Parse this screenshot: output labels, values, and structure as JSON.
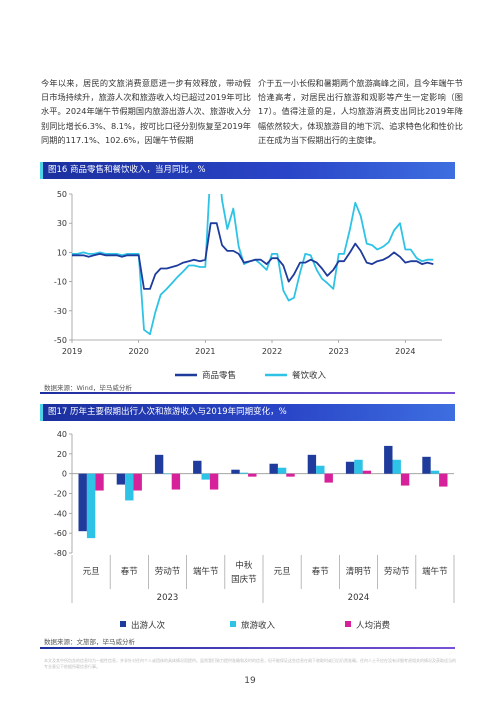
{
  "body_text": {
    "left": "今年以来，居民的文旅消费意愿进一步有效释放，带动假日市场持续升，旅游人次和旅游收入均已超过2019年可比水平。2024年端午节假期国内旅游出游人次、旅游收入分别同比增长6.3%、8.1%，按可比口径分别恢复至2019年同期的117.1%、102.6%，因端午节假期",
    "right": "介于五一小长假和暑期两个旅游高峰之间，且今年端午节恰逢高考，对居民出行旅游和观影等产生一定影响（图17）。值得注意的是，人均旅游消费支出同比2019年降幅依然较大，体现旅游目的地下沉、追求特色化和性价比正在成为当下假期出行的主旋律。"
  },
  "figure16": {
    "title": "图16 商品零售和餐饮收入，当月同比，%",
    "source": "数据来源：Wind，毕马威分析",
    "legend": [
      "商品零售",
      "餐饮收入"
    ]
  },
  "figure17": {
    "title": "图17 历年主要假期出行人次和旅游收入与2019年同期变化，%",
    "source": "数据来源：文旅部，毕马威分析",
    "legend": [
      "出游人次",
      "旅游收入",
      "人均消费"
    ]
  },
  "chart_data": [
    {
      "type": "line",
      "title": "图16 商品零售和餐饮收入，当月同比，%",
      "ylim": [
        -50,
        50
      ],
      "yticks": [
        50,
        30,
        10,
        -10,
        -30,
        -50
      ],
      "xticks": [
        "2019",
        "2020",
        "2021",
        "2022",
        "2023",
        "2024"
      ],
      "xrange": [
        2019.0,
        2024.55
      ],
      "grid": false,
      "legend_position": "bottom",
      "series": [
        {
          "name": "商品零售",
          "color": "#1f3b9c",
          "x": [
            2019.0,
            2019.08,
            2019.17,
            2019.25,
            2019.33,
            2019.42,
            2019.5,
            2019.58,
            2019.67,
            2019.75,
            2019.83,
            2019.92,
            2020.0,
            2020.08,
            2020.17,
            2020.25,
            2020.33,
            2020.42,
            2020.5,
            2020.58,
            2020.67,
            2020.75,
            2020.83,
            2020.92,
            2021.0,
            2021.08,
            2021.17,
            2021.25,
            2021.33,
            2021.42,
            2021.5,
            2021.58,
            2021.67,
            2021.75,
            2021.83,
            2021.92,
            2022.0,
            2022.08,
            2022.17,
            2022.25,
            2022.33,
            2022.42,
            2022.5,
            2022.58,
            2022.67,
            2022.75,
            2022.83,
            2022.92,
            2023.0,
            2023.08,
            2023.17,
            2023.25,
            2023.33,
            2023.42,
            2023.5,
            2023.58,
            2023.67,
            2023.75,
            2023.83,
            2023.92,
            2024.0,
            2024.08,
            2024.17,
            2024.25,
            2024.33,
            2024.42
          ],
          "y": [
            8,
            8,
            8,
            7,
            8,
            9,
            8,
            8,
            8,
            7,
            8,
            8,
            8,
            -15,
            -15,
            -5,
            -1,
            -1,
            0,
            1,
            3,
            4,
            5,
            4,
            5,
            30,
            30,
            15,
            11,
            11,
            9,
            3,
            4,
            5,
            5,
            2,
            6,
            6,
            1,
            -10,
            -5,
            3,
            3,
            5,
            3,
            -1,
            -6,
            -2,
            4,
            4,
            10,
            16,
            11,
            3,
            2,
            4,
            5,
            7,
            10,
            7,
            3,
            4,
            4,
            2,
            3,
            2
          ]
        },
        {
          "name": "餐饮收入",
          "color": "#2ec3e6",
          "x": [
            2019.0,
            2019.08,
            2019.17,
            2019.25,
            2019.33,
            2019.42,
            2019.5,
            2019.58,
            2019.67,
            2019.75,
            2019.83,
            2019.92,
            2020.0,
            2020.08,
            2020.17,
            2020.25,
            2020.33,
            2020.42,
            2020.5,
            2020.58,
            2020.67,
            2020.75,
            2020.83,
            2020.92,
            2021.0,
            2021.08,
            2021.17,
            2021.25,
            2021.33,
            2021.42,
            2021.5,
            2021.58,
            2021.67,
            2021.75,
            2021.83,
            2021.92,
            2022.0,
            2022.08,
            2022.17,
            2022.25,
            2022.33,
            2022.42,
            2022.5,
            2022.58,
            2022.67,
            2022.75,
            2022.83,
            2022.92,
            2023.0,
            2023.08,
            2023.17,
            2023.25,
            2023.33,
            2023.42,
            2023.5,
            2023.58,
            2023.67,
            2023.75,
            2023.83,
            2023.92,
            2024.0,
            2024.08,
            2024.17,
            2024.25,
            2024.33,
            2024.42
          ],
          "y": [
            9,
            9,
            10,
            9,
            9,
            10,
            9,
            9,
            9,
            8,
            9,
            9,
            9,
            -43,
            -46,
            -31,
            -19,
            -15,
            -11,
            -7,
            -3,
            1,
            1,
            0,
            0,
            69,
            91,
            46,
            26,
            40,
            14,
            2,
            4,
            5,
            2,
            -2,
            9,
            9,
            -16,
            -23,
            -21,
            -4,
            9,
            8,
            -2,
            -8,
            -11,
            -15,
            9,
            9,
            26,
            44,
            35,
            16,
            15,
            12,
            14,
            17,
            25,
            30,
            12,
            12,
            6,
            4,
            5,
            5
          ]
        }
      ]
    },
    {
      "type": "bar",
      "title": "图17 历年主要假期出行人次和旅游收入与2019年同期变化，%",
      "ylim": [
        -80,
        40
      ],
      "yticks": [
        40,
        20,
        0,
        -20,
        -40,
        -60,
        -80
      ],
      "grid": false,
      "legend_position": "bottom",
      "categories": [
        "元旦",
        "春节",
        "劳动节",
        "端午节",
        "中秋\n国庆节",
        "元旦",
        "春节",
        "清明节",
        "劳动节",
        "端午节"
      ],
      "groups": [
        {
          "label": "2023",
          "span": [
            0,
            4
          ]
        },
        {
          "label": "2024",
          "span": [
            5,
            9
          ]
        }
      ],
      "series": [
        {
          "name": "出游人次",
          "color": "#1f3b9c",
          "values": [
            -58,
            -11,
            19,
            13,
            4,
            10,
            19,
            12,
            28,
            17
          ]
        },
        {
          "name": "旅游收入",
          "color": "#2ec3e6",
          "values": [
            -65,
            -27,
            0,
            -6,
            1,
            6,
            8,
            14,
            14,
            3
          ]
        },
        {
          "name": "人均消费",
          "color": "#d6219a",
          "values": [
            -17,
            -17,
            -16,
            -16,
            -3,
            -3,
            -9,
            3,
            -12,
            -13
          ]
        }
      ]
    }
  ],
  "footnote": "本文及其中所包含的信息均为一般性信息，并非针对任何个人或团体的具体情况而提供。虽然我们致力提供准确和及时的信息，但不能保证这些信息在阁下收取时或日后仍然准确。任何人士不应在没有详细考虑相关的情况及获取适当的专业意见下依据所载信息行事。",
  "page_number": "19"
}
